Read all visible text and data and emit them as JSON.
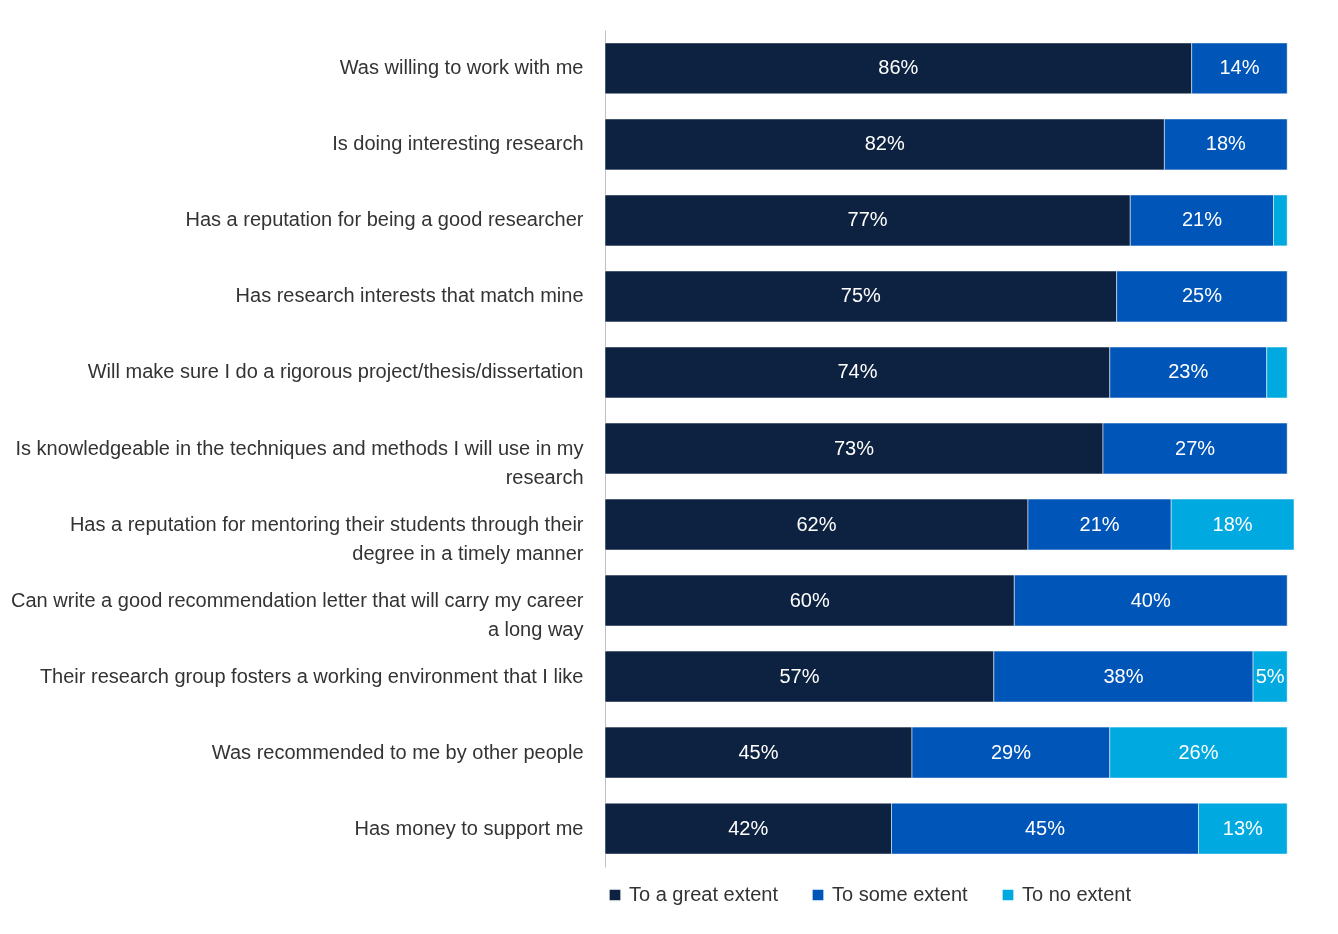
{
  "chart_data": {
    "type": "bar",
    "orientation": "horizontal",
    "stacked": true,
    "xlim": [
      0,
      101
    ],
    "tick_labels": "y",
    "legend": "bottom",
    "categories": [
      "Was willing to work with me",
      "Is doing interesting research",
      "Has a reputation for being a good researcher",
      "Has research interests that match mine",
      "Will make sure I do a rigorous project/thesis/dissertation",
      "Is knowledgeable in the techniques and methods I will use in my research",
      "Has a reputation for mentoring their students through their degree in a timely manner",
      "Can write a good recommendation letter that will carry my career a long way",
      "Their research group fosters a working environment that I like",
      "Was recommended to me by other people",
      "Has money to support me"
    ],
    "series": [
      {
        "name": "To a great extent",
        "color": "#0d2240",
        "values": [
          86,
          82,
          77,
          75,
          74,
          73,
          62,
          60,
          57,
          45,
          42
        ],
        "value_labels": [
          "86%",
          "82%",
          "77%",
          "75%",
          "74%",
          "73%",
          "62%",
          "60%",
          "57%",
          "45%",
          "42%"
        ]
      },
      {
        "name": "To some extent",
        "color": "#0055b8",
        "values": [
          14,
          18,
          21,
          25,
          23,
          27,
          21,
          40,
          38,
          29,
          45
        ],
        "value_labels": [
          "14%",
          "18%",
          "21%",
          "25%",
          "23%",
          "27%",
          "21%",
          "40%",
          "38%",
          "29%",
          "45%"
        ]
      },
      {
        "name": "To no extent",
        "color": "#00a9e0",
        "values": [
          null,
          null,
          2,
          null,
          3,
          null,
          18,
          null,
          5,
          26,
          13
        ],
        "value_labels": [
          null,
          null,
          null,
          null,
          null,
          null,
          "18%",
          null,
          "5%",
          "26%",
          "13%"
        ]
      }
    ]
  }
}
